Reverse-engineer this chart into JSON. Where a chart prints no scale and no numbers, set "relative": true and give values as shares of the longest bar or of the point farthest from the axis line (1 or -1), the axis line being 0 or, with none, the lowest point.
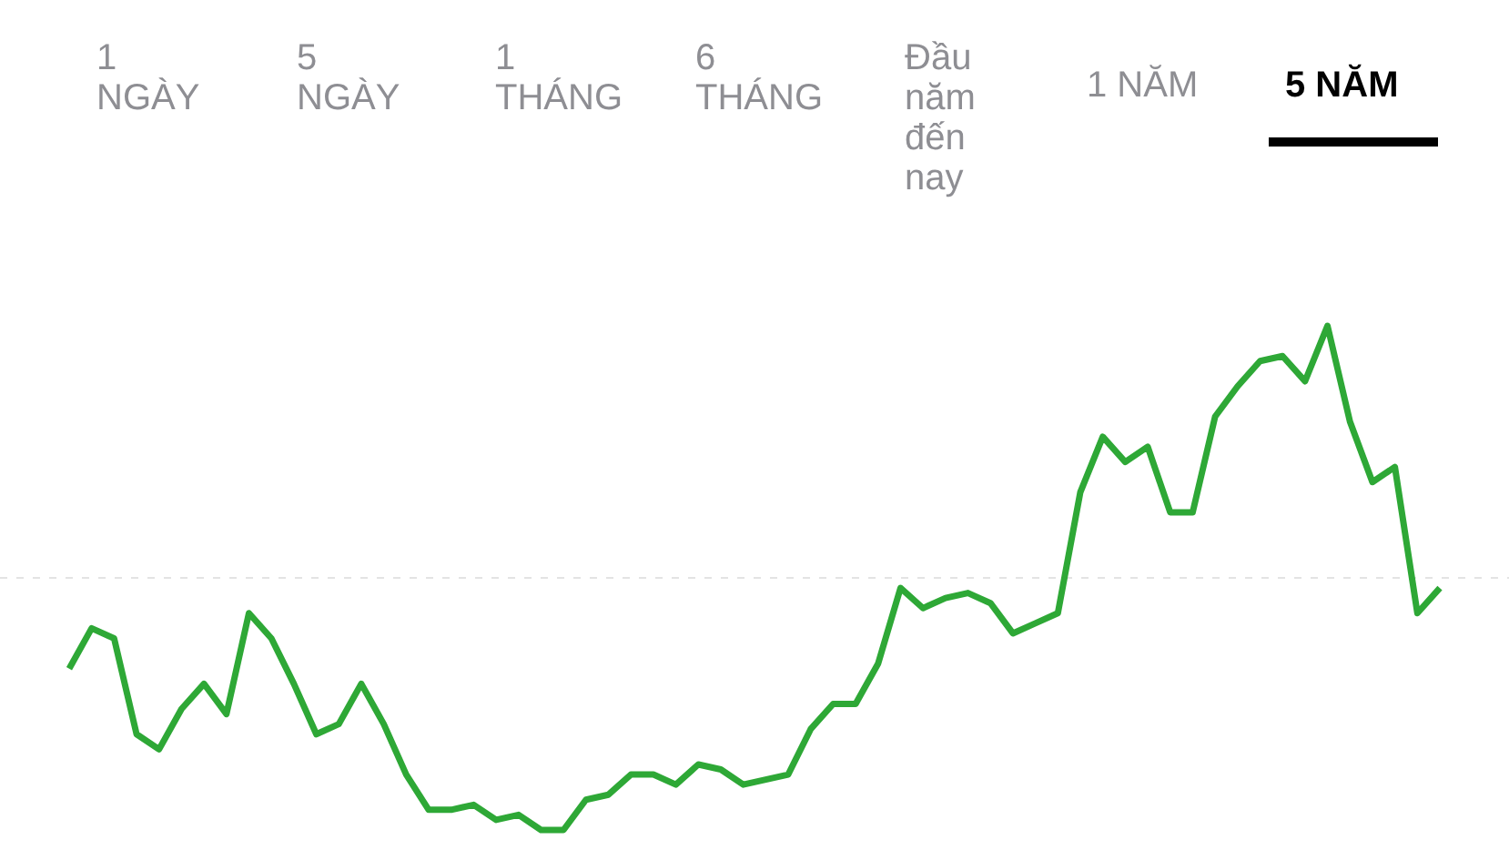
{
  "chart_data": {
    "type": "line",
    "relative": true,
    "annotations": [
      "1\nNGÀY",
      "5\nNGÀY",
      "1\nTHÁNG",
      "6\nTHÁNG",
      "Đầu\nnăm\nđến\nnay",
      "1 NĂM",
      "5 NĂM"
    ],
    "categories": [
      null,
      null,
      null,
      null,
      null,
      null,
      null,
      null,
      null,
      null,
      null,
      null,
      null,
      null,
      null,
      null,
      null,
      null,
      null,
      null,
      null,
      null,
      null,
      null,
      null,
      null,
      null,
      null,
      null,
      null,
      null,
      null,
      null,
      null,
      null,
      null,
      null,
      null,
      null,
      null,
      null,
      null,
      null,
      null,
      null,
      null,
      null,
      null,
      null,
      null,
      null,
      null,
      null,
      null,
      null,
      null,
      null,
      null,
      null,
      null,
      null,
      null
    ],
    "series": [
      {
        "color": "#2ea836",
        "values": [
          0.32,
          0.4,
          0.38,
          0.19,
          0.16,
          0.24,
          0.29,
          0.23,
          0.43,
          0.38,
          0.29,
          0.19,
          0.21,
          0.29,
          0.21,
          0.11,
          0.04,
          0.04,
          0.05,
          0.02,
          0.03,
          0,
          0,
          0.06,
          0.07,
          0.11,
          0.11,
          0.09,
          0.13,
          0.12,
          0.09,
          0.1,
          0.11,
          0.2,
          0.25,
          0.25,
          0.33,
          0.48,
          0.44,
          0.46,
          0.47,
          0.45,
          0.39,
          0.41,
          0.43,
          0.67,
          0.78,
          0.73,
          0.76,
          0.63,
          0.63,
          0.82,
          0.88,
          0.93,
          0.94,
          0.89,
          1,
          0.81,
          0.69,
          0.72,
          0.43,
          0.48
        ]
      }
    ],
    "ref_lines": [
      {
        "axis": "y",
        "value": 0.5,
        "color": "#e3e3e3",
        "line_style": "dashed"
      }
    ],
    "marker": "none",
    "line_style": "solid"
  }
}
